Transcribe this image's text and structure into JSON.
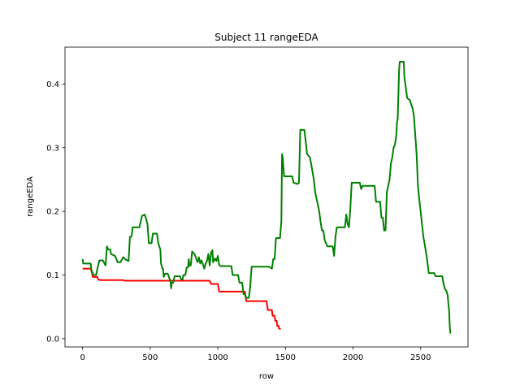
{
  "chart_data": {
    "type": "line",
    "title": "Subject 11 rangeEDA",
    "xlabel": "row",
    "ylabel": "rangeEDA",
    "xlim": [
      -130,
      2850
    ],
    "ylim": [
      -0.013,
      0.458
    ],
    "xticks": [
      0,
      500,
      1000,
      1500,
      2000,
      2500
    ],
    "yticks": [
      0.0,
      0.1,
      0.2,
      0.3,
      0.4
    ],
    "xtick_labels": [
      "0",
      "500",
      "1000",
      "1500",
      "2000",
      "2500"
    ],
    "ytick_labels": [
      "0.0",
      "0.1",
      "0.2",
      "0.3",
      "0.4"
    ],
    "grid": false,
    "legend": "none",
    "series": [
      {
        "color": "#ff0000",
        "points": [
          [
            0,
            0.11
          ],
          [
            50,
            0.11
          ],
          [
            60,
            0.11
          ],
          [
            70,
            0.103
          ],
          [
            75,
            0.097
          ],
          [
            90,
            0.097
          ],
          [
            110,
            0.097
          ],
          [
            115,
            0.093
          ],
          [
            130,
            0.092
          ],
          [
            300,
            0.092
          ],
          [
            310,
            0.091
          ],
          [
            600,
            0.091
          ],
          [
            940,
            0.091
          ],
          [
            950,
            0.086
          ],
          [
            1000,
            0.086
          ],
          [
            1010,
            0.074
          ],
          [
            1200,
            0.074
          ],
          [
            1210,
            0.059
          ],
          [
            1360,
            0.059
          ],
          [
            1370,
            0.045
          ],
          [
            1400,
            0.045
          ],
          [
            1405,
            0.036
          ],
          [
            1420,
            0.036
          ],
          [
            1425,
            0.028
          ],
          [
            1435,
            0.028
          ],
          [
            1440,
            0.02
          ],
          [
            1450,
            0.02
          ],
          [
            1452,
            0.016
          ],
          [
            1465,
            0.015
          ]
        ]
      },
      {
        "color": "#008000",
        "points": [
          [
            0,
            0.125
          ],
          [
            5,
            0.118
          ],
          [
            40,
            0.118
          ],
          [
            60,
            0.118
          ],
          [
            65,
            0.108
          ],
          [
            80,
            0.1
          ],
          [
            100,
            0.1
          ],
          [
            110,
            0.11
          ],
          [
            125,
            0.123
          ],
          [
            150,
            0.123
          ],
          [
            170,
            0.115
          ],
          [
            180,
            0.145
          ],
          [
            190,
            0.14
          ],
          [
            205,
            0.14
          ],
          [
            210,
            0.133
          ],
          [
            240,
            0.13
          ],
          [
            260,
            0.12
          ],
          [
            280,
            0.12
          ],
          [
            300,
            0.128
          ],
          [
            320,
            0.124
          ],
          [
            340,
            0.122
          ],
          [
            345,
            0.14
          ],
          [
            350,
            0.16
          ],
          [
            360,
            0.16
          ],
          [
            365,
            0.165
          ],
          [
            370,
            0.175
          ],
          [
            400,
            0.175
          ],
          [
            420,
            0.175
          ],
          [
            440,
            0.193
          ],
          [
            460,
            0.195
          ],
          [
            470,
            0.188
          ],
          [
            480,
            0.18
          ],
          [
            490,
            0.15
          ],
          [
            500,
            0.15
          ],
          [
            510,
            0.15
          ],
          [
            520,
            0.165
          ],
          [
            540,
            0.165
          ],
          [
            550,
            0.165
          ],
          [
            560,
            0.15
          ],
          [
            575,
            0.14
          ],
          [
            580,
            0.118
          ],
          [
            590,
            0.11
          ],
          [
            595,
            0.11
          ],
          [
            600,
            0.097
          ],
          [
            610,
            0.102
          ],
          [
            630,
            0.102
          ],
          [
            650,
            0.09
          ],
          [
            655,
            0.079
          ],
          [
            660,
            0.088
          ],
          [
            670,
            0.088
          ],
          [
            680,
            0.098
          ],
          [
            700,
            0.098
          ],
          [
            720,
            0.098
          ],
          [
            730,
            0.093
          ],
          [
            740,
            0.093
          ],
          [
            745,
            0.1
          ],
          [
            760,
            0.1
          ],
          [
            770,
            0.112
          ],
          [
            780,
            0.112
          ],
          [
            785,
            0.125
          ],
          [
            790,
            0.115
          ],
          [
            800,
            0.115
          ],
          [
            810,
            0.137
          ],
          [
            830,
            0.132
          ],
          [
            850,
            0.12
          ],
          [
            860,
            0.128
          ],
          [
            870,
            0.118
          ],
          [
            880,
            0.123
          ],
          [
            900,
            0.11
          ],
          [
            910,
            0.118
          ],
          [
            920,
            0.122
          ],
          [
            930,
            0.133
          ],
          [
            940,
            0.115
          ],
          [
            950,
            0.135
          ],
          [
            960,
            0.139
          ],
          [
            965,
            0.12
          ],
          [
            980,
            0.126
          ],
          [
            990,
            0.122
          ],
          [
            1000,
            0.13
          ],
          [
            1010,
            0.116
          ],
          [
            1020,
            0.114
          ],
          [
            1100,
            0.114
          ],
          [
            1110,
            0.1
          ],
          [
            1150,
            0.1
          ],
          [
            1160,
            0.088
          ],
          [
            1180,
            0.088
          ],
          [
            1190,
            0.07
          ],
          [
            1200,
            0.07
          ],
          [
            1210,
            0.064
          ],
          [
            1230,
            0.064
          ],
          [
            1240,
            0.083
          ],
          [
            1250,
            0.113
          ],
          [
            1350,
            0.113
          ],
          [
            1380,
            0.113
          ],
          [
            1400,
            0.11
          ],
          [
            1410,
            0.125
          ],
          [
            1420,
            0.125
          ],
          [
            1430,
            0.158
          ],
          [
            1460,
            0.158
          ],
          [
            1470,
            0.185
          ],
          [
            1475,
            0.29
          ],
          [
            1480,
            0.285
          ],
          [
            1490,
            0.255
          ],
          [
            1550,
            0.255
          ],
          [
            1560,
            0.245
          ],
          [
            1590,
            0.243
          ],
          [
            1600,
            0.245
          ],
          [
            1610,
            0.328
          ],
          [
            1640,
            0.328
          ],
          [
            1650,
            0.31
          ],
          [
            1660,
            0.29
          ],
          [
            1680,
            0.285
          ],
          [
            1690,
            0.275
          ],
          [
            1710,
            0.25
          ],
          [
            1720,
            0.23
          ],
          [
            1730,
            0.22
          ],
          [
            1740,
            0.21
          ],
          [
            1750,
            0.2
          ],
          [
            1760,
            0.183
          ],
          [
            1770,
            0.17
          ],
          [
            1780,
            0.17
          ],
          [
            1790,
            0.155
          ],
          [
            1800,
            0.15
          ],
          [
            1810,
            0.145
          ],
          [
            1850,
            0.145
          ],
          [
            1860,
            0.13
          ],
          [
            1870,
            0.16
          ],
          [
            1880,
            0.175
          ],
          [
            1940,
            0.175
          ],
          [
            1950,
            0.195
          ],
          [
            1960,
            0.18
          ],
          [
            1970,
            0.175
          ],
          [
            1980,
            0.205
          ],
          [
            1990,
            0.245
          ],
          [
            2050,
            0.245
          ],
          [
            2060,
            0.235
          ],
          [
            2070,
            0.24
          ],
          [
            2160,
            0.24
          ],
          [
            2170,
            0.215
          ],
          [
            2200,
            0.215
          ],
          [
            2210,
            0.19
          ],
          [
            2220,
            0.19
          ],
          [
            2230,
            0.17
          ],
          [
            2240,
            0.17
          ],
          [
            2250,
            0.23
          ],
          [
            2270,
            0.25
          ],
          [
            2280,
            0.275
          ],
          [
            2290,
            0.285
          ],
          [
            2300,
            0.3
          ],
          [
            2310,
            0.305
          ],
          [
            2320,
            0.32
          ],
          [
            2325,
            0.34
          ],
          [
            2330,
            0.345
          ],
          [
            2335,
            0.38
          ],
          [
            2340,
            0.42
          ],
          [
            2345,
            0.435
          ],
          [
            2375,
            0.435
          ],
          [
            2380,
            0.41
          ],
          [
            2390,
            0.395
          ],
          [
            2400,
            0.378
          ],
          [
            2420,
            0.375
          ],
          [
            2430,
            0.368
          ],
          [
            2440,
            0.362
          ],
          [
            2450,
            0.35
          ],
          [
            2460,
            0.32
          ],
          [
            2470,
            0.29
          ],
          [
            2480,
            0.24
          ],
          [
            2490,
            0.218
          ],
          [
            2500,
            0.2
          ],
          [
            2510,
            0.18
          ],
          [
            2520,
            0.16
          ],
          [
            2530,
            0.148
          ],
          [
            2540,
            0.135
          ],
          [
            2550,
            0.12
          ],
          [
            2560,
            0.103
          ],
          [
            2600,
            0.103
          ],
          [
            2610,
            0.098
          ],
          [
            2660,
            0.098
          ],
          [
            2670,
            0.085
          ],
          [
            2680,
            0.078
          ],
          [
            2690,
            0.075
          ],
          [
            2700,
            0.068
          ],
          [
            2705,
            0.055
          ],
          [
            2710,
            0.045
          ],
          [
            2715,
            0.02
          ],
          [
            2720,
            0.008
          ]
        ]
      }
    ]
  }
}
